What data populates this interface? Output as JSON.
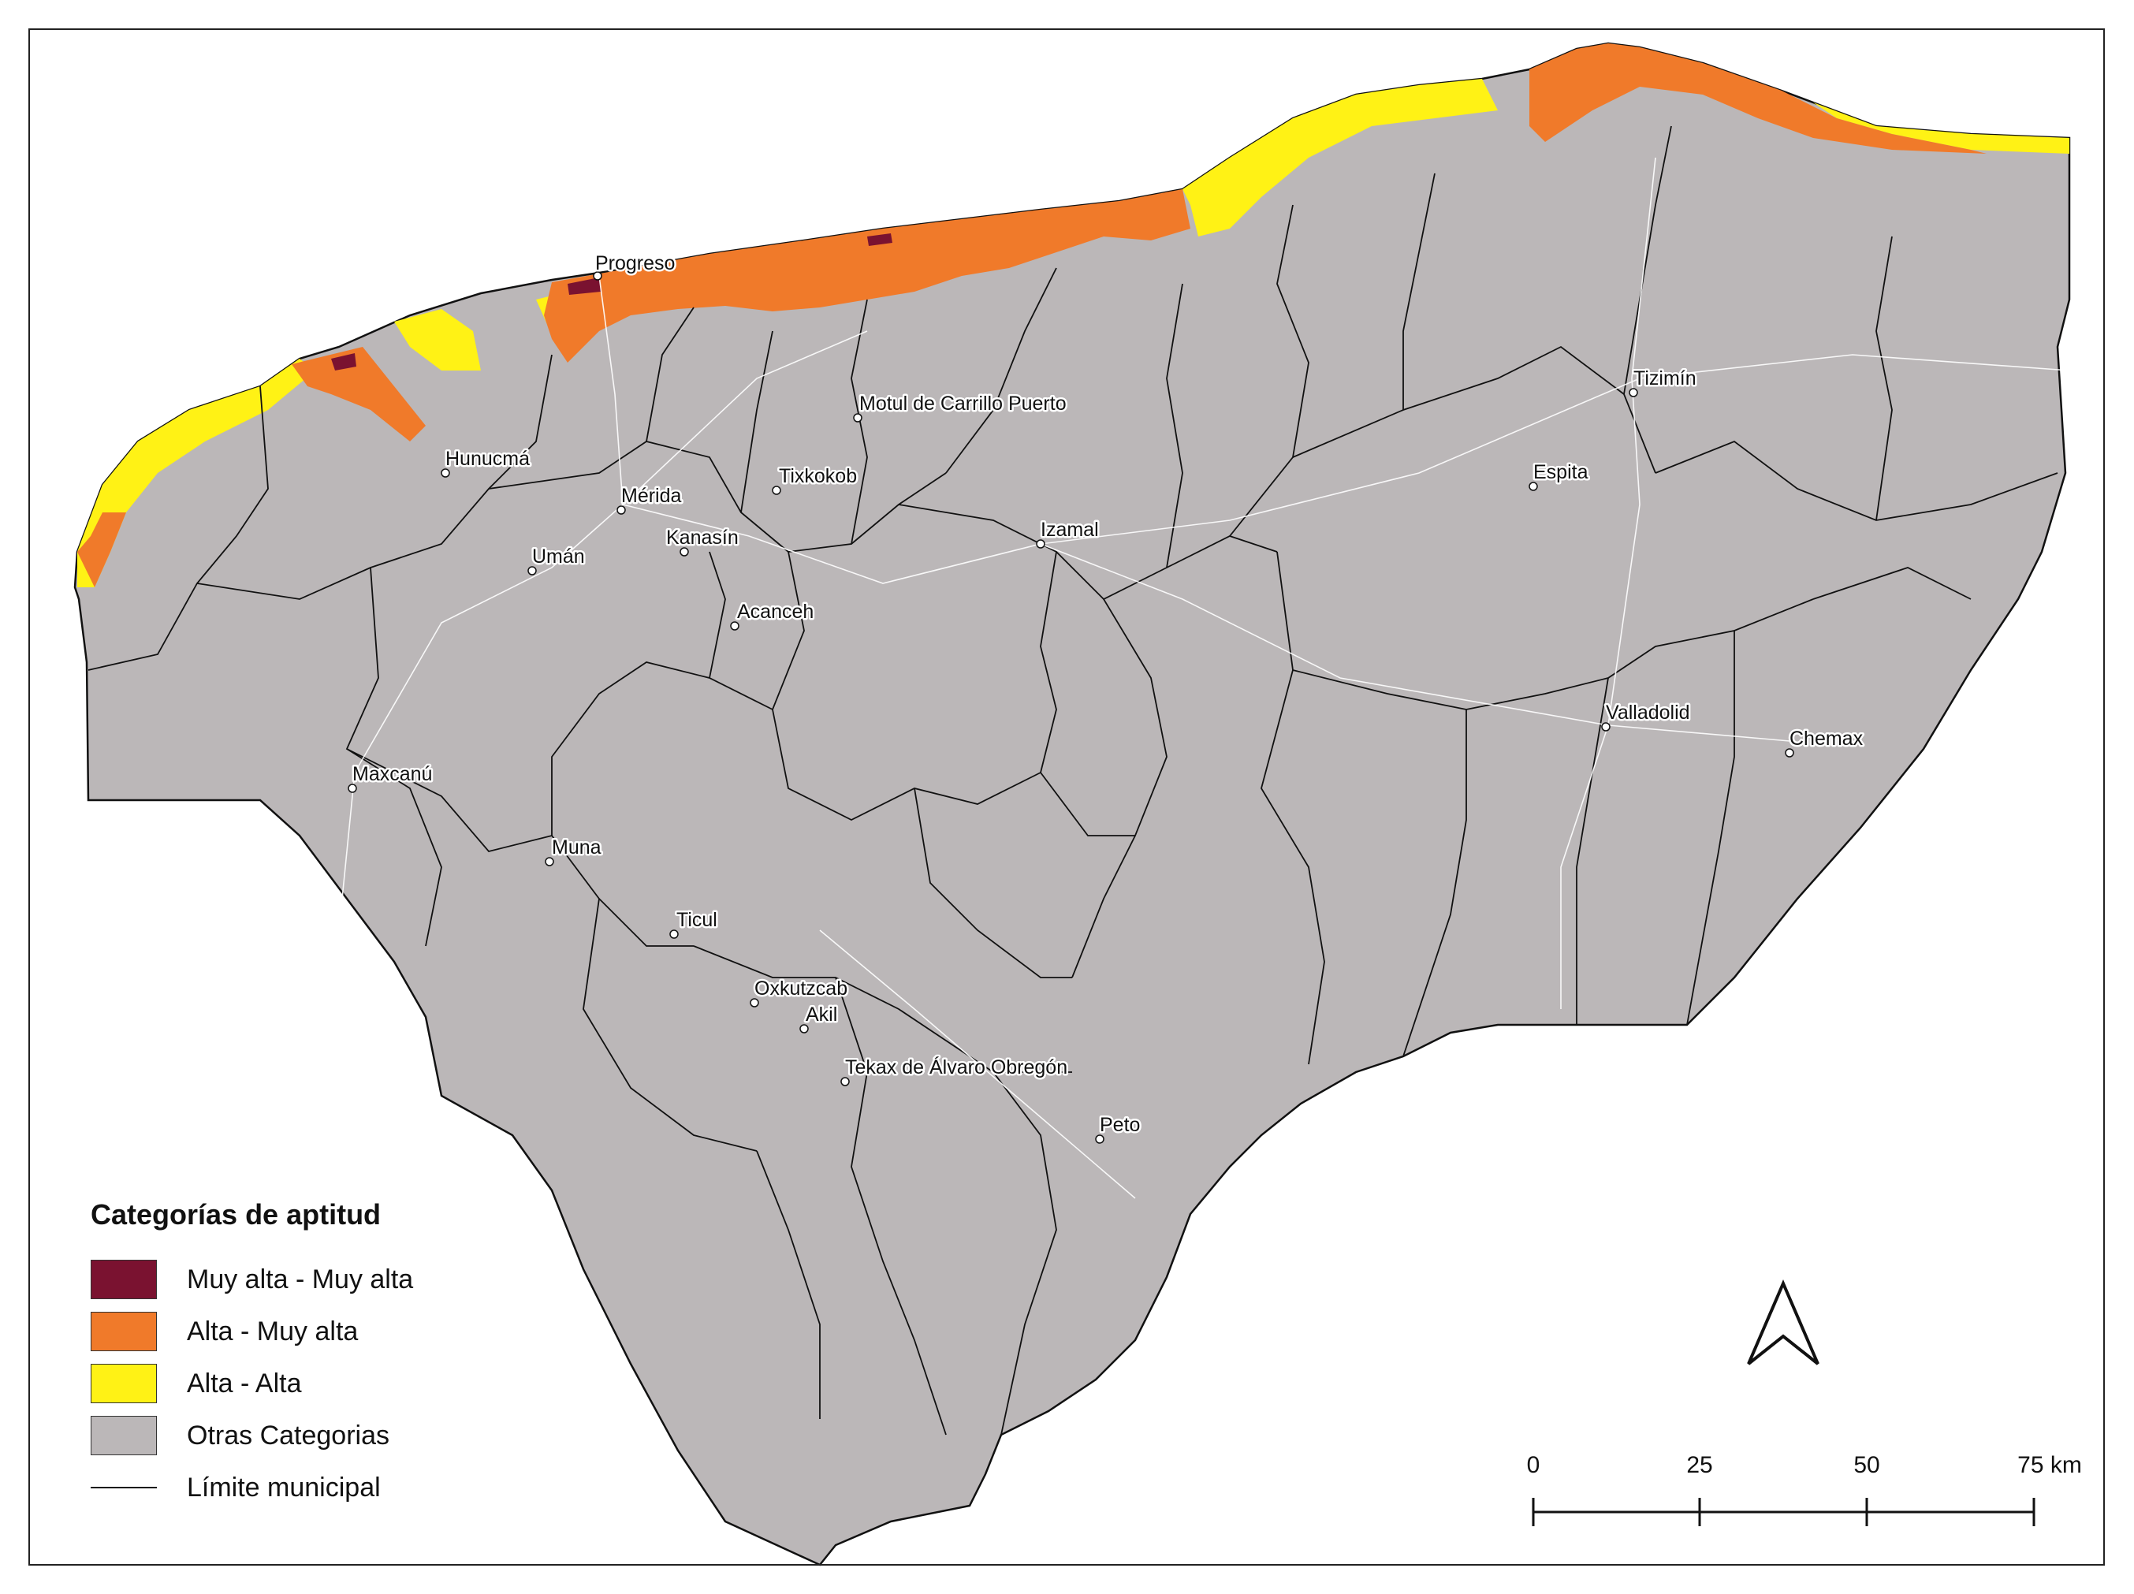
{
  "legend": {
    "title": "Categorías de aptitud",
    "items": [
      {
        "label": "Muy alta - Muy alta",
        "color": "#7a1230"
      },
      {
        "label": "Alta - Muy alta",
        "color": "#f07a2a"
      },
      {
        "label": "Alta - Alta",
        "color": "#fff215"
      },
      {
        "label": "Otras Categorias",
        "color": "#bbb7b8"
      }
    ],
    "line_item": {
      "label": "Límite municipal",
      "color": "#111111"
    }
  },
  "cities": [
    {
      "name": "Progreso",
      "key": "progreso"
    },
    {
      "name": "Hunucmá",
      "key": "hunucma"
    },
    {
      "name": "Mérida",
      "key": "merida"
    },
    {
      "name": "Kanasín",
      "key": "kanasin"
    },
    {
      "name": "Tixkokob",
      "key": "tixkokob"
    },
    {
      "name": "Motul de Carrillo Puerto",
      "key": "motul"
    },
    {
      "name": "Izamal",
      "key": "izamal"
    },
    {
      "name": "Umán",
      "key": "uman"
    },
    {
      "name": "Acanceh",
      "key": "acanceh"
    },
    {
      "name": "Tizimín",
      "key": "tizimin"
    },
    {
      "name": "Espita",
      "key": "espita"
    },
    {
      "name": "Valladolid",
      "key": "valladolid"
    },
    {
      "name": "Chemax",
      "key": "chemax"
    },
    {
      "name": "Maxcanú",
      "key": "maxcanu"
    },
    {
      "name": "Muna",
      "key": "muna"
    },
    {
      "name": "Ticul",
      "key": "ticul"
    },
    {
      "name": "Oxkutzcab",
      "key": "oxkutzcab"
    },
    {
      "name": "Akil",
      "key": "akil"
    },
    {
      "name": "Tekax de Álvaro Obregón",
      "key": "tekax"
    },
    {
      "name": "Peto",
      "key": "peto"
    }
  ],
  "scale_bar": {
    "ticks": [
      "0",
      "25",
      "50",
      "75 km"
    ]
  },
  "north_arrow": {
    "icon": "north-arrow-icon"
  }
}
